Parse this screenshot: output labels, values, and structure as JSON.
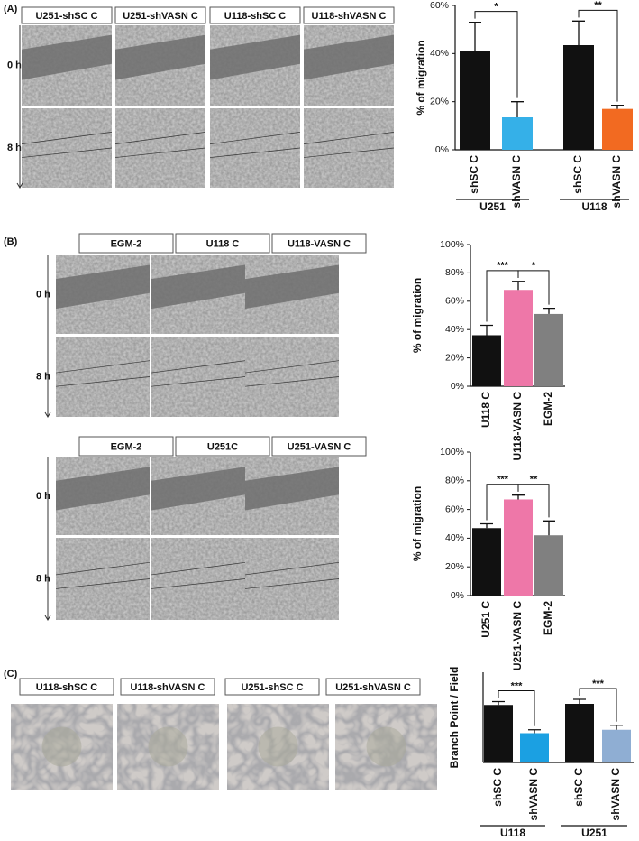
{
  "panels": [
    {
      "letter": "(A)",
      "headers": [
        "U251-shSC C",
        "U251-shVASN C",
        "U118-shSC C",
        "U118-shVASN C"
      ],
      "rows": [
        "0 h",
        "8 h"
      ]
    },
    {
      "letter": "(B)",
      "headers": [
        "EGM-2",
        "U118 C",
        "U118-VASN C"
      ],
      "rows": [
        "0 h",
        "8 h"
      ]
    },
    {
      "headers": [
        "EGM-2",
        "U251C",
        "U251-VASN C"
      ],
      "rows": [
        "0 h",
        "8 h"
      ]
    },
    {
      "letter": "(C)",
      "headers": [
        "U118-shSC C",
        "U118-shVASN C",
        "U251-shSC C",
        "U251-shVASN C"
      ]
    }
  ],
  "chart_data": [
    {
      "type": "bar",
      "ylabel": "% of migration",
      "categories": [
        "shSC C",
        "shVASN C",
        "shSC C",
        "shVASN C"
      ],
      "values": [
        41,
        13.5,
        43.5,
        17
      ],
      "errors": [
        12,
        6.5,
        10,
        1.5
      ],
      "colors": [
        "#111111",
        "#35b0e8",
        "#111111",
        "#f26a21"
      ],
      "ylim": [
        0,
        60
      ],
      "yticks": [
        {
          "value": 0,
          "label": "0%"
        },
        {
          "value": 20,
          "label": "20%"
        },
        {
          "value": 40,
          "label": "40%"
        },
        {
          "value": 60,
          "label": "60%"
        }
      ],
      "significance": [
        {
          "label": "*",
          "from": 0,
          "to": 1
        },
        {
          "label": "**",
          "from": 2,
          "to": 3
        }
      ],
      "groups": [
        {
          "label": "U251",
          "from": 0,
          "to": 1
        },
        {
          "label": "U118",
          "from": 2,
          "to": 3
        }
      ]
    },
    {
      "type": "bar",
      "ylabel": "% of migration",
      "categories": [
        "U118 C",
        "U118-VASN C",
        "EGM-2"
      ],
      "values": [
        36,
        68,
        51
      ],
      "errors": [
        7,
        6,
        4
      ],
      "colors": [
        "#111111",
        "#ee77a8",
        "#808080"
      ],
      "ylim": [
        0,
        100
      ],
      "yticks": [
        {
          "value": 0,
          "label": "0%"
        },
        {
          "value": 20,
          "label": "20%"
        },
        {
          "value": 40,
          "label": "40%"
        },
        {
          "value": 60,
          "label": "60%"
        },
        {
          "value": 80,
          "label": "80%"
        },
        {
          "value": 100,
          "label": "100%"
        }
      ],
      "significance": [
        {
          "label": "***",
          "from": 0,
          "to": 1
        },
        {
          "label": "*",
          "from": 1,
          "to": 2
        }
      ]
    },
    {
      "type": "bar",
      "ylabel": "% of migration",
      "categories": [
        "U251 C",
        "U251-VASN C",
        "EGM-2"
      ],
      "values": [
        47,
        67,
        42
      ],
      "errors": [
        3,
        3,
        10
      ],
      "colors": [
        "#111111",
        "#ee77a8",
        "#808080"
      ],
      "ylim": [
        0,
        100
      ],
      "yticks": [
        {
          "value": 0,
          "label": "0%"
        },
        {
          "value": 20,
          "label": "20%"
        },
        {
          "value": 40,
          "label": "40%"
        },
        {
          "value": 60,
          "label": "60%"
        },
        {
          "value": 80,
          "label": "80%"
        },
        {
          "value": 100,
          "label": "100%"
        }
      ],
      "significance": [
        {
          "label": "***",
          "from": 0,
          "to": 1
        },
        {
          "label": "**",
          "from": 1,
          "to": 2
        }
      ]
    },
    {
      "type": "bar",
      "ylabel": "Branch Point / Field",
      "categories": [
        "shSC C",
        "shVASN C",
        "shSC C",
        "shVASN C"
      ],
      "values": [
        51,
        26,
        52,
        29
      ],
      "errors": [
        3,
        3,
        4,
        4
      ],
      "colors": [
        "#111111",
        "#1ba0e2",
        "#111111",
        "#8faed3"
      ],
      "ylim": [
        0,
        80
      ],
      "yticks": [],
      "significance": [
        {
          "label": "***",
          "from": 0,
          "to": 1
        },
        {
          "label": "***",
          "from": 2,
          "to": 3
        }
      ],
      "groups": [
        {
          "label": "U118",
          "from": 0,
          "to": 1
        },
        {
          "label": "U251",
          "from": 2,
          "to": 3
        }
      ]
    }
  ]
}
